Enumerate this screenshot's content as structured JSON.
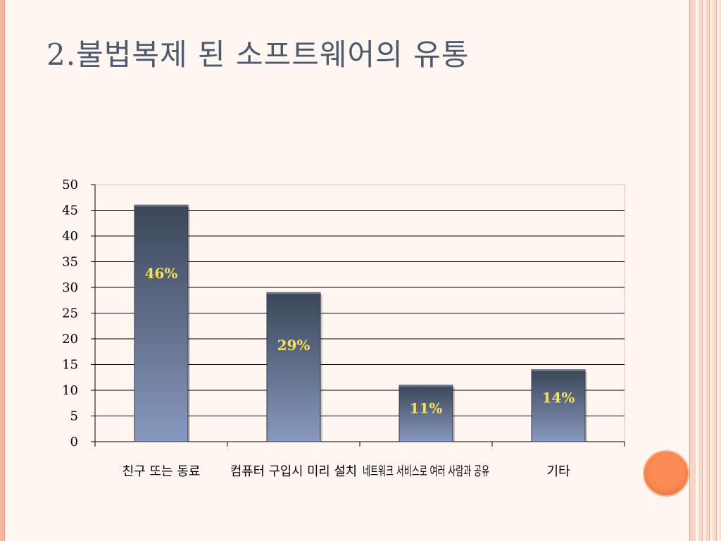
{
  "slide": {
    "title": "2.불법복제 된 소프트웨어의 유통"
  },
  "colors": {
    "title": "#4d5a6d",
    "bar_top": "#3b4658",
    "bar_bottom": "#8898bf",
    "data_label": "#f7e15a",
    "accent_circle": "#fb8c55",
    "plot_border": "#f4b79f"
  },
  "chart_data": {
    "type": "bar",
    "title": "",
    "xlabel": "",
    "ylabel": "",
    "categories": [
      "친구 또는 동료",
      "컴퓨터 구입시 미리 설치",
      "네트워크 서비스로 여러 사람과 공유",
      "기타"
    ],
    "values": [
      46,
      29,
      11,
      14
    ],
    "data_labels": [
      "46%",
      "29%",
      "11%",
      "14%"
    ],
    "ylim": [
      0,
      50
    ],
    "yticks": [
      0,
      5,
      10,
      15,
      20,
      25,
      30,
      35,
      40,
      45,
      50
    ],
    "grid": true,
    "legend": "none"
  }
}
